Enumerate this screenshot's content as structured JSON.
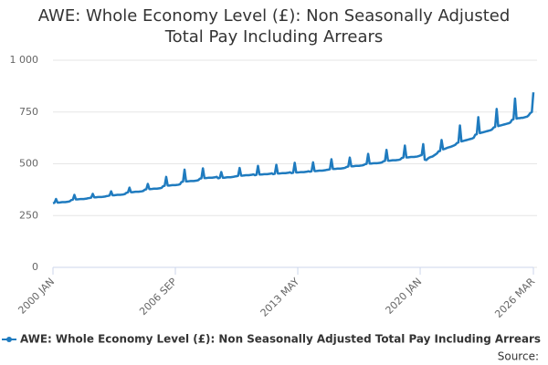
{
  "chart_data": {
    "type": "line",
    "title": "AWE: Whole Economy Level (£): Non Seasonally Adjusted Total Pay Including Arrears",
    "source": "Source:",
    "ylim": [
      0,
      1000
    ],
    "yticks": [
      0,
      250,
      500,
      750,
      {
        "value": 1000,
        "label": "1 000"
      }
    ],
    "grid": true,
    "legend": "bottom",
    "categories": [
      "2000 JAN",
      null,
      null,
      null,
      null,
      null,
      null,
      null,
      null,
      null,
      null,
      null,
      null,
      null,
      null,
      null,
      null,
      null,
      null,
      null,
      null,
      null,
      null,
      null,
      null,
      null,
      null,
      null,
      null,
      null,
      null,
      null,
      null,
      null,
      null,
      null,
      null,
      null,
      null,
      null,
      null,
      null,
      null,
      null,
      null,
      null,
      null,
      null,
      null,
      null,
      null,
      null,
      null,
      null,
      null,
      null,
      null,
      null,
      null,
      null,
      null,
      null,
      null,
      null,
      null,
      null,
      null,
      null,
      null,
      null,
      null,
      null,
      null,
      null,
      null,
      null,
      null,
      null,
      null,
      null,
      "2006 SEP",
      null,
      null,
      null,
      null,
      null,
      null,
      null,
      null,
      null,
      null,
      null,
      null,
      null,
      null,
      null,
      null,
      null,
      null,
      null,
      null,
      null,
      null,
      null,
      null,
      null,
      null,
      null,
      null,
      null,
      null,
      null,
      null,
      null,
      null,
      null,
      null,
      null,
      null,
      null,
      null,
      null,
      null,
      null,
      null,
      null,
      null,
      null,
      null,
      null,
      null,
      null,
      null,
      null,
      null,
      null,
      null,
      null,
      null,
      null,
      null,
      null,
      null,
      null,
      null,
      null,
      null,
      null,
      null,
      null,
      null,
      null,
      null,
      null,
      null,
      null,
      null,
      null,
      null,
      null,
      "2013 MAY",
      null,
      null,
      null,
      null,
      null,
      null,
      null,
      null,
      null,
      null,
      null,
      null,
      null,
      null,
      null,
      null,
      null,
      null,
      null,
      null,
      null,
      null,
      null,
      null,
      null,
      null,
      null,
      null,
      null,
      null,
      null,
      null,
      null,
      null,
      null,
      null,
      null,
      null,
      null,
      null,
      null,
      null,
      null,
      null,
      null,
      null,
      null,
      null,
      null,
      null,
      null,
      null,
      null,
      null,
      null,
      null,
      null,
      null,
      null,
      null,
      null,
      null,
      null,
      null,
      null,
      null,
      null,
      null,
      null,
      null,
      null,
      null,
      null,
      null,
      null,
      null,
      null,
      null,
      null,
      "2020 JAN",
      null,
      null,
      null,
      null,
      null,
      null,
      null,
      null,
      null,
      null,
      null,
      null,
      null,
      null,
      null,
      null,
      null,
      null,
      null,
      null,
      null,
      null,
      null,
      null,
      null,
      null,
      null,
      null,
      null,
      null,
      null,
      null,
      null,
      null,
      null,
      null,
      null,
      null,
      null,
      null,
      null,
      null,
      null,
      null,
      null,
      null,
      null,
      null,
      null,
      null,
      null,
      null,
      null,
      null,
      null,
      null,
      null,
      null,
      null,
      null,
      null,
      null,
      null,
      null,
      null,
      null,
      null,
      null,
      null,
      null,
      null,
      null,
      null,
      "2026 MAR"
    ],
    "series": [
      {
        "name": "AWE: Whole Economy Level (£): Non Seasonally Adjusted Total Pay Including Arrears",
        "color": "#1f7bbf",
        "values": [
          310,
          312,
          330,
          313,
          313,
          314,
          315,
          315,
          315,
          316,
          317,
          319,
          325,
          327,
          350,
          328,
          328,
          329,
          330,
          330,
          330,
          331,
          332,
          334,
          335,
          337,
          355,
          338,
          338,
          339,
          340,
          340,
          340,
          341,
          342,
          344,
          345,
          347,
          367,
          348,
          348,
          349,
          350,
          350,
          350,
          351,
          352,
          354,
          360,
          362,
          385,
          363,
          363,
          364,
          365,
          365,
          365,
          366,
          367,
          369,
          375,
          377,
          403,
          378,
          378,
          379,
          380,
          380,
          380,
          381,
          382,
          384,
          392,
          394,
          437,
          395,
          395,
          396,
          397,
          397,
          397,
          398,
          399,
          401,
          412,
          414,
          472,
          415,
          415,
          416,
          417,
          417,
          417,
          418,
          419,
          421,
          428,
          430,
          478,
          431,
          431,
          432,
          433,
          433,
          433,
          434,
          435,
          437,
          430,
          432,
          460,
          433,
          433,
          434,
          435,
          435,
          435,
          436,
          437,
          439,
          440,
          442,
          480,
          443,
          443,
          444,
          445,
          445,
          445,
          446,
          447,
          449,
          445,
          447,
          490,
          448,
          448,
          449,
          450,
          450,
          450,
          451,
          452,
          454,
          450,
          452,
          495,
          453,
          453,
          454,
          455,
          455,
          455,
          456,
          457,
          459,
          455,
          457,
          505,
          458,
          458,
          459,
          460,
          460,
          460,
          461,
          462,
          464,
          462,
          464,
          507,
          465,
          465,
          466,
          467,
          467,
          467,
          468,
          469,
          471,
          472,
          474,
          522,
          475,
          475,
          476,
          477,
          477,
          477,
          478,
          479,
          481,
          485,
          487,
          530,
          488,
          488,
          489,
          490,
          490,
          490,
          491,
          492,
          494,
          498,
          500,
          548,
          501,
          501,
          502,
          503,
          503,
          503,
          504,
          505,
          507,
          512,
          514,
          567,
          515,
          515,
          516,
          517,
          517,
          517,
          518,
          519,
          521,
          528,
          530,
          588,
          531,
          531,
          532,
          533,
          533,
          533,
          534,
          535,
          537,
          540,
          542,
          595,
          520,
          518,
          525,
          530,
          533,
          535,
          540,
          545,
          550,
          560,
          562,
          615,
          570,
          572,
          575,
          578,
          580,
          582,
          585,
          588,
          592,
          600,
          603,
          685,
          608,
          610,
          612,
          614,
          616,
          618,
          620,
          622,
          626,
          640,
          643,
          725,
          648,
          650,
          652,
          654,
          656,
          658,
          660,
          662,
          666,
          675,
          678,
          765,
          682,
          684,
          686,
          688,
          690,
          692,
          694,
          696,
          700,
          712,
          715,
          815,
          718,
          720,
          720,
          722,
          722,
          724,
          726,
          728,
          735,
          745,
          750,
          845
        ]
      }
    ]
  }
}
